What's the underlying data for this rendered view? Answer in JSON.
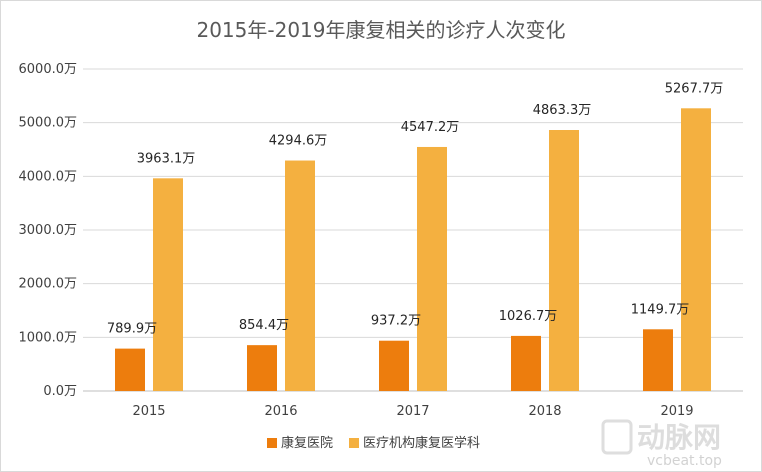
{
  "chart_data": {
    "type": "bar",
    "title": "2015年-2019年康复相关的诊疗人次变化",
    "categories": [
      "2015",
      "2016",
      "2017",
      "2018",
      "2019"
    ],
    "series": [
      {
        "name": "康复医院",
        "color": "#ED7D0D",
        "values": [
          789.9,
          854.4,
          937.2,
          1026.7,
          1149.7
        ],
        "labels": [
          "789.9万",
          "854.4万",
          "937.2万",
          "1026.7万",
          "1149.7万"
        ]
      },
      {
        "name": "医疗机构康复医学科",
        "color": "#F4B040",
        "values": [
          3963.1,
          4294.6,
          4547.2,
          4863.3,
          5267.7
        ],
        "labels": [
          "3963.1万",
          "4294.6万",
          "4547.2万",
          "4863.3万",
          "5267.7万"
        ]
      }
    ],
    "yticks": [
      0,
      1000,
      2000,
      3000,
      4000,
      5000,
      6000
    ],
    "ytick_labels": [
      "0.0万",
      "1000.0万",
      "2000.0万",
      "3000.0万",
      "4000.0万",
      "5000.0万",
      "6000.0万"
    ],
    "ylim": [
      0,
      6000
    ],
    "grid": true,
    "legend_position": "bottom"
  },
  "watermark": {
    "brand": "动脉网",
    "site": "vcbeat.top"
  }
}
